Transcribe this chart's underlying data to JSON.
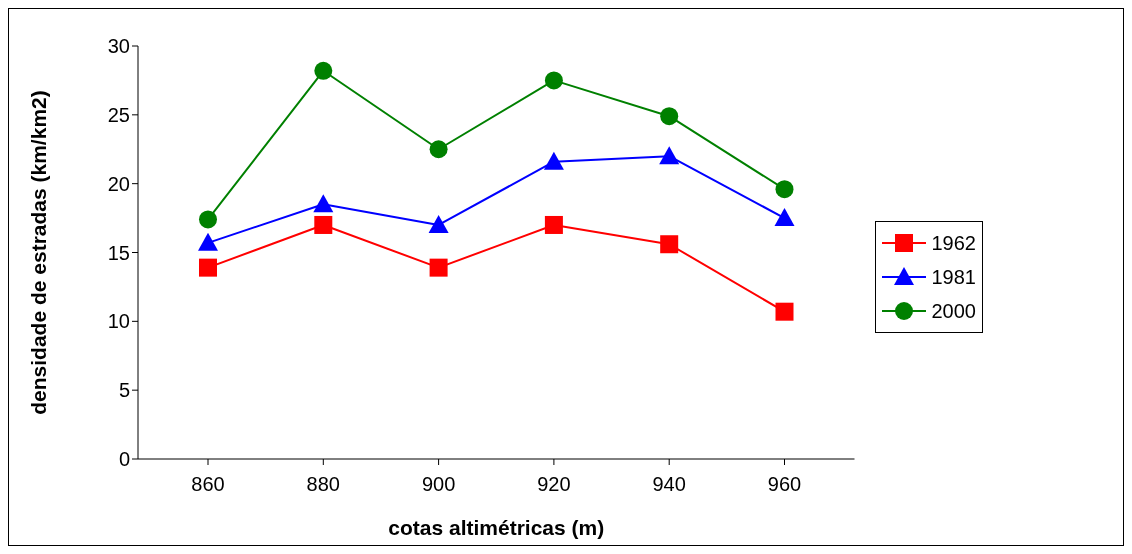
{
  "chart_data": {
    "type": "line",
    "xlabel": "cotas altimétricas (m)",
    "ylabel": "densidade de estradas (km/km2)",
    "categories": [
      "860",
      "880",
      "900",
      "920",
      "940",
      "960"
    ],
    "ylim": [
      0,
      30
    ],
    "yticks": [
      0,
      5,
      10,
      15,
      20,
      25,
      30
    ],
    "grid": false,
    "legend": "right",
    "line_style": "solid",
    "series": [
      {
        "name": "1962",
        "color": "#ff0000",
        "marker": "square",
        "values": [
          13.9,
          17.0,
          13.9,
          17.0,
          15.6,
          10.7
        ]
      },
      {
        "name": "1981",
        "color": "#0000ff",
        "marker": "triangle",
        "values": [
          15.7,
          18.5,
          17.0,
          21.6,
          22.0,
          17.5
        ]
      },
      {
        "name": "2000",
        "color": "#008000",
        "marker": "circle",
        "values": [
          17.4,
          28.2,
          22.5,
          27.5,
          24.9,
          19.6
        ]
      }
    ]
  }
}
